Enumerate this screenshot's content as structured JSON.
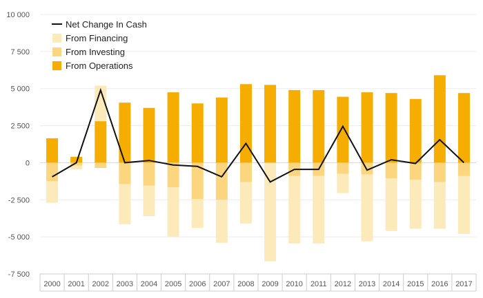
{
  "chart_data": {
    "type": "bar",
    "stacked": true,
    "categories": [
      "2000",
      "2001",
      "2002",
      "2003",
      "2004",
      "2005",
      "2006",
      "2007",
      "2008",
      "2009",
      "2010",
      "2011",
      "2012",
      "2013",
      "2014",
      "2015",
      "2016",
      "2017"
    ],
    "series": [
      {
        "name": "From Operations",
        "type": "bar",
        "color": "#f5ad00",
        "values": [
          1650,
          400,
          2800,
          4050,
          3700,
          4750,
          4000,
          4400,
          5300,
          5250,
          4900,
          4900,
          4450,
          4750,
          4700,
          4300,
          5900,
          4700
        ]
      },
      {
        "name": "From Investing",
        "type": "bar",
        "color": "#fbd67e",
        "values": [
          -1250,
          -200,
          -350,
          -1450,
          -1550,
          -1650,
          -2450,
          -2500,
          -1300,
          0,
          -900,
          -900,
          -750,
          -800,
          -1050,
          -1150,
          -1300,
          -900
        ]
      },
      {
        "name": "From Financing",
        "type": "bar",
        "color": "#fdeabb",
        "values": [
          -1450,
          -250,
          2400,
          -2700,
          -2050,
          -3350,
          -1950,
          -2900,
          -2800,
          -6650,
          -4550,
          -4550,
          -1300,
          -4500,
          -3550,
          -3300,
          -3150,
          -3900
        ]
      },
      {
        "name": "Net Change In Cash",
        "type": "line",
        "color": "#111111",
        "values": [
          -950,
          0,
          4900,
          0,
          150,
          -150,
          -250,
          -950,
          1300,
          -1300,
          -450,
          -450,
          2450,
          -500,
          200,
          -50,
          1550,
          0
        ]
      }
    ],
    "y_ticks": [
      "-7 500",
      "-5 000",
      "-2 500",
      "0",
      "2 500",
      "5 000",
      "7 500",
      "10 000"
    ],
    "y_tick_values": [
      -7500,
      -5000,
      -2500,
      0,
      2500,
      5000,
      7500,
      10000
    ],
    "ylim": [
      -7500,
      10000
    ],
    "grid": true,
    "legend_position": "top-left",
    "legend": [
      {
        "label": "Net Change In Cash",
        "kind": "line",
        "color": "#111111"
      },
      {
        "label": "From Financing",
        "kind": "box",
        "color": "#fdeabb"
      },
      {
        "label": "From Investing",
        "kind": "box",
        "color": "#fbd67e"
      },
      {
        "label": "From Operations",
        "kind": "box",
        "color": "#f5ad00"
      }
    ],
    "title": "",
    "xlabel": "",
    "ylabel": ""
  }
}
